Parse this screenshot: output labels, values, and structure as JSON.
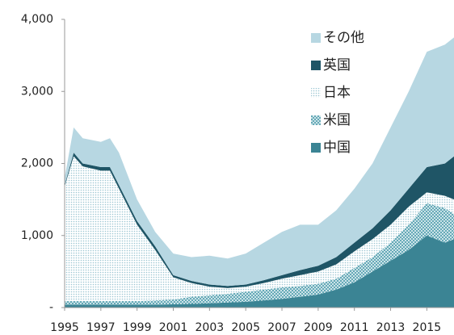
{
  "chart_data": {
    "type": "area",
    "x": [
      1995,
      1995.5,
      1996,
      1997,
      1997.5,
      1998,
      1999,
      2000,
      2001,
      2002,
      2003,
      2004,
      2005,
      2006,
      2007,
      2008,
      2009,
      2010,
      2011,
      2012,
      2013,
      2014,
      2015,
      2016,
      2016.5
    ],
    "series": [
      {
        "name": "中国",
        "color": "#3b8494",
        "values": [
          40,
          40,
          40,
          40,
          40,
          40,
          40,
          40,
          45,
          50,
          60,
          70,
          80,
          100,
          120,
          150,
          180,
          250,
          350,
          500,
          650,
          800,
          1000,
          900,
          950
        ]
      },
      {
        "name": "米国",
        "color": "#4a9aaa",
        "pattern": "cross",
        "values": [
          50,
          50,
          50,
          50,
          50,
          50,
          50,
          60,
          65,
          100,
          110,
          120,
          140,
          150,
          160,
          150,
          150,
          150,
          200,
          200,
          250,
          350,
          450,
          480,
          350
        ]
      },
      {
        "name": "日本",
        "color": "#9cc6d2",
        "pattern": "dots",
        "values": [
          1590,
          2010,
          1870,
          1810,
          1810,
          1560,
          1060,
          700,
          310,
          190,
          120,
          80,
          70,
          90,
          120,
          150,
          170,
          200,
          230,
          250,
          250,
          250,
          150,
          170,
          200
        ]
      },
      {
        "name": "英国",
        "color": "#1f5566",
        "values": [
          20,
          50,
          40,
          50,
          50,
          50,
          50,
          50,
          30,
          30,
          30,
          30,
          30,
          40,
          50,
          70,
          80,
          100,
          120,
          150,
          200,
          250,
          350,
          450,
          600
        ]
      },
      {
        "name": "その他",
        "color": "#b7d7e2",
        "values": [
          100,
          350,
          350,
          350,
          400,
          450,
          300,
          200,
          300,
          330,
          400,
          380,
          430,
          520,
          600,
          630,
          570,
          650,
          750,
          900,
          1150,
          1350,
          1600,
          1650,
          1650
        ]
      }
    ],
    "xlim": [
      1995,
      2016.5
    ],
    "xticks": [
      1995,
      1997,
      1999,
      2001,
      2003,
      2005,
      2007,
      2009,
      2011,
      2013,
      2015
    ],
    "ylim": [
      0,
      4000
    ],
    "yticks": [
      {
        "value": 0,
        "label": "-"
      },
      {
        "value": 1000,
        "label": "1,000"
      },
      {
        "value": 2000,
        "label": "2,000"
      },
      {
        "value": 3000,
        "label": "3,000"
      },
      {
        "value": 4000,
        "label": "4,000"
      }
    ],
    "legend": "top-right"
  }
}
